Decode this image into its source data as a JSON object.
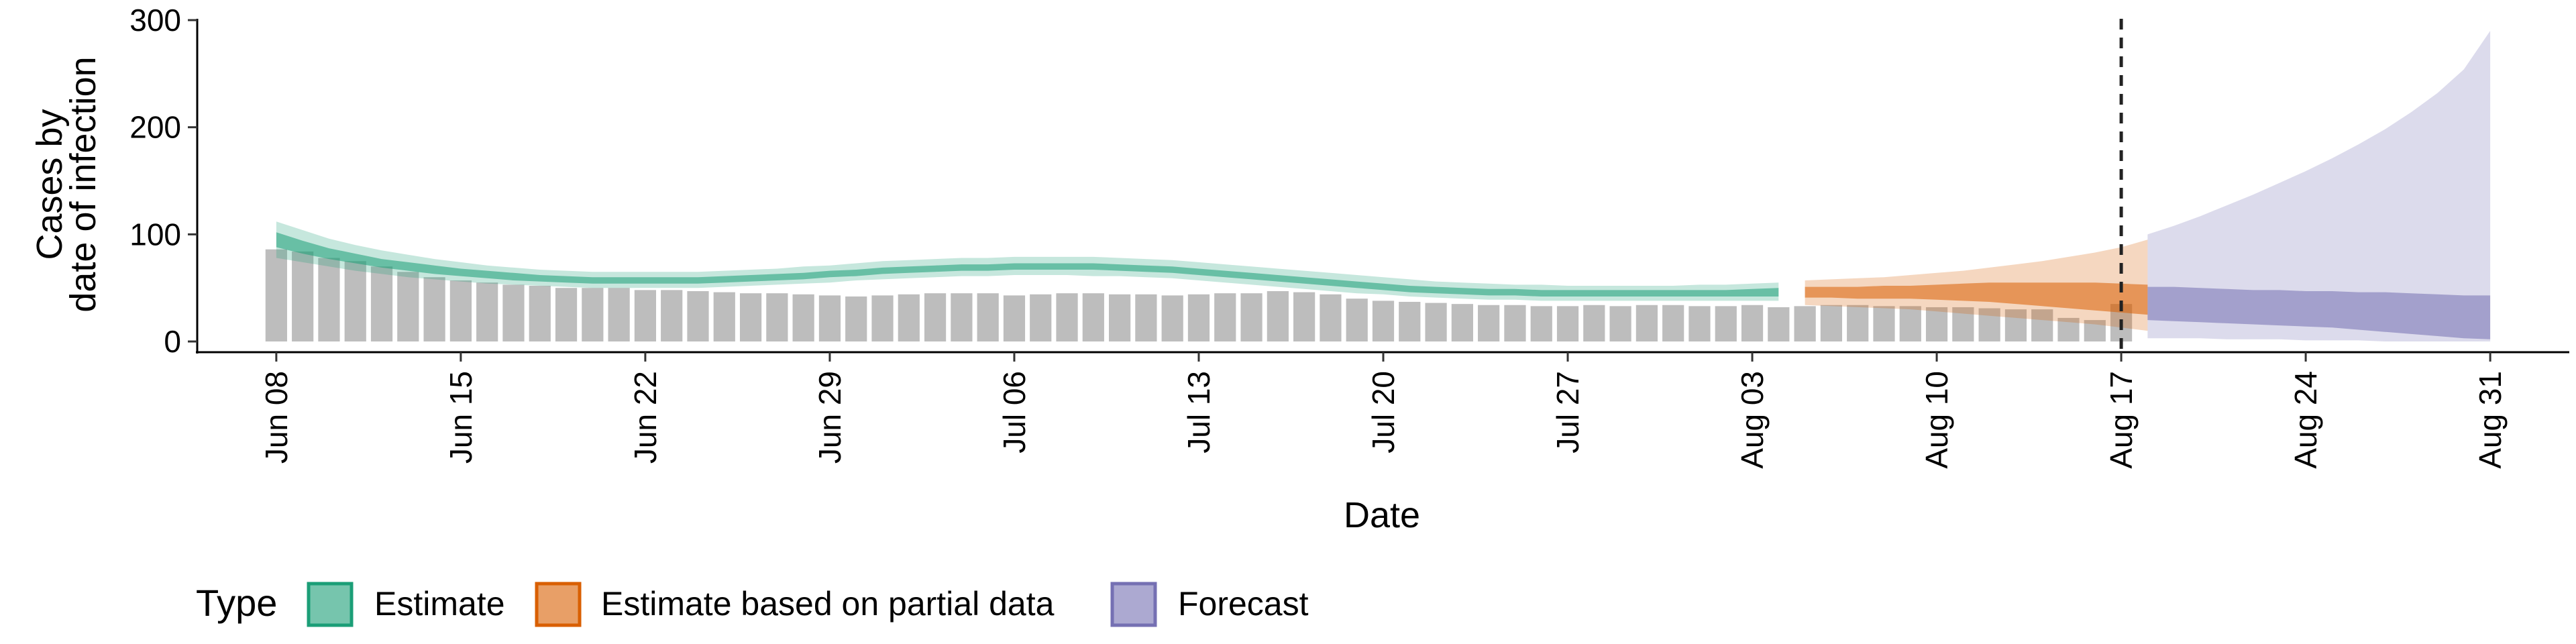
{
  "chart_data": {
    "type": "bar",
    "xlabel": "Date",
    "ylabel_lines": [
      "Cases by",
      "date of infection"
    ],
    "y_ticks": [
      0,
      100,
      200,
      300
    ],
    "ylim": [
      -10,
      300
    ],
    "x_ticks": [
      "Jun 08",
      "Jun 15",
      "Jun 22",
      "Jun 29",
      "Jul 06",
      "Jul 13",
      "Jul 20",
      "Jul 27",
      "Aug 03",
      "Aug 10",
      "Aug 17",
      "Aug 24",
      "Aug 31"
    ],
    "x_range": [
      "Jun 05",
      "Sep 03"
    ],
    "vline_date": "Aug 17",
    "grid": false,
    "legend_placement": "bottom-left",
    "legend_title": "Type",
    "legend": [
      {
        "label": "Estimate",
        "color": "#1b9e77"
      },
      {
        "label": "Estimate based on partial data",
        "color": "#d95f02"
      },
      {
        "label": "Forecast",
        "color": "#7570b3"
      }
    ],
    "bar_color": "#bdbdbd",
    "reported_cases": {
      "start_date": "Jun 08",
      "values": [
        86,
        84,
        78,
        75,
        70,
        65,
        60,
        57,
        55,
        53,
        52,
        50,
        50,
        50,
        48,
        48,
        47,
        46,
        45,
        45,
        44,
        43,
        42,
        43,
        44,
        45,
        45,
        45,
        43,
        44,
        45,
        45,
        44,
        44,
        43,
        44,
        45,
        45,
        47,
        46,
        44,
        40,
        38,
        37,
        36,
        35,
        34,
        34,
        33,
        33,
        34,
        33,
        34,
        34,
        33,
        33,
        34,
        32,
        33,
        34,
        34,
        33,
        33,
        32,
        32,
        31,
        30,
        30,
        22,
        20,
        35
      ]
    },
    "series": [
      {
        "name": "Estimate",
        "color": "#1b9e77",
        "start_date": "Jun 08",
        "median": [
          95,
          88,
          82,
          77,
          73,
          70,
          67,
          64,
          62,
          60,
          59,
          58,
          57,
          57,
          57,
          57,
          57,
          58,
          59,
          60,
          61,
          63,
          64,
          66,
          67,
          68,
          69,
          69,
          70,
          70,
          70,
          70,
          69,
          68,
          67,
          65,
          63,
          61,
          59,
          57,
          55,
          53,
          51,
          49,
          48,
          47,
          46,
          46,
          45,
          45,
          45,
          45,
          45,
          45,
          45,
          45,
          45,
          46
        ],
        "lower50": [
          88,
          82,
          77,
          73,
          69,
          66,
          63,
          61,
          59,
          57,
          56,
          55,
          54,
          54,
          54,
          54,
          54,
          55,
          56,
          57,
          58,
          60,
          61,
          63,
          64,
          65,
          66,
          66,
          67,
          67,
          67,
          67,
          66,
          65,
          64,
          62,
          60,
          58,
          56,
          54,
          52,
          50,
          48,
          46,
          45,
          44,
          43,
          43,
          42,
          42,
          42,
          42,
          42,
          42,
          42,
          42,
          42,
          42
        ],
        "upper50": [
          102,
          94,
          87,
          82,
          77,
          74,
          71,
          68,
          66,
          64,
          62,
          61,
          60,
          60,
          60,
          60,
          60,
          61,
          62,
          63,
          64,
          66,
          67,
          69,
          70,
          71,
          72,
          72,
          73,
          73,
          73,
          73,
          72,
          71,
          70,
          68,
          66,
          64,
          62,
          60,
          58,
          56,
          54,
          52,
          51,
          50,
          49,
          49,
          48,
          48,
          48,
          48,
          48,
          48,
          48,
          48,
          49,
          50
        ],
        "lower90": [
          78,
          74,
          70,
          66,
          63,
          60,
          58,
          56,
          54,
          53,
          52,
          51,
          50,
          50,
          50,
          50,
          50,
          51,
          52,
          53,
          54,
          55,
          57,
          58,
          59,
          60,
          61,
          61,
          62,
          62,
          62,
          61,
          61,
          60,
          59,
          57,
          55,
          53,
          51,
          49,
          47,
          45,
          44,
          42,
          41,
          40,
          39,
          39,
          38,
          38,
          38,
          38,
          38,
          38,
          38,
          38,
          38,
          38
        ],
        "upper90": [
          112,
          104,
          96,
          90,
          85,
          81,
          77,
          74,
          71,
          69,
          67,
          66,
          65,
          65,
          65,
          65,
          65,
          66,
          67,
          68,
          70,
          71,
          73,
          75,
          76,
          77,
          78,
          78,
          79,
          79,
          79,
          79,
          78,
          77,
          76,
          74,
          72,
          70,
          68,
          66,
          64,
          62,
          60,
          58,
          56,
          55,
          54,
          53,
          53,
          52,
          52,
          52,
          52,
          52,
          53,
          53,
          54,
          55
        ]
      },
      {
        "name": "Estimate based on partial data",
        "color": "#d95f02",
        "start_date": "Aug 05",
        "median": [
          46,
          46,
          46,
          46,
          46,
          46,
          46,
          45,
          45,
          44,
          43,
          42,
          41,
          40
        ],
        "lower50": [
          41,
          41,
          40,
          40,
          40,
          39,
          38,
          37,
          35,
          33,
          31,
          29,
          27,
          25
        ],
        "upper50": [
          51,
          51,
          51,
          52,
          52,
          53,
          54,
          55,
          55,
          55,
          55,
          55,
          54,
          53
        ],
        "lower90": [
          34,
          33,
          32,
          31,
          30,
          28,
          26,
          24,
          22,
          20,
          18,
          16,
          13,
          10
        ],
        "upper90": [
          57,
          58,
          59,
          60,
          62,
          64,
          66,
          69,
          72,
          75,
          79,
          83,
          88,
          95
        ]
      },
      {
        "name": "Forecast",
        "color": "#7570b3",
        "start_date": "Aug 18",
        "median": [
          32,
          32,
          31,
          31,
          30,
          30,
          29,
          29,
          28,
          28,
          27,
          27,
          26,
          26
        ],
        "lower50": [
          20,
          19,
          18,
          17,
          16,
          15,
          14,
          13,
          11,
          9,
          7,
          5,
          3,
          2
        ],
        "upper50": [
          51,
          51,
          50,
          49,
          48,
          48,
          47,
          47,
          46,
          46,
          45,
          44,
          43,
          43
        ],
        "lower90": [
          3,
          3,
          3,
          2,
          2,
          2,
          1,
          1,
          1,
          0,
          0,
          0,
          0,
          0
        ],
        "upper90": [
          100,
          108,
          117,
          127,
          137,
          148,
          159,
          171,
          184,
          198,
          214,
          232,
          254,
          290
        ]
      }
    ]
  }
}
